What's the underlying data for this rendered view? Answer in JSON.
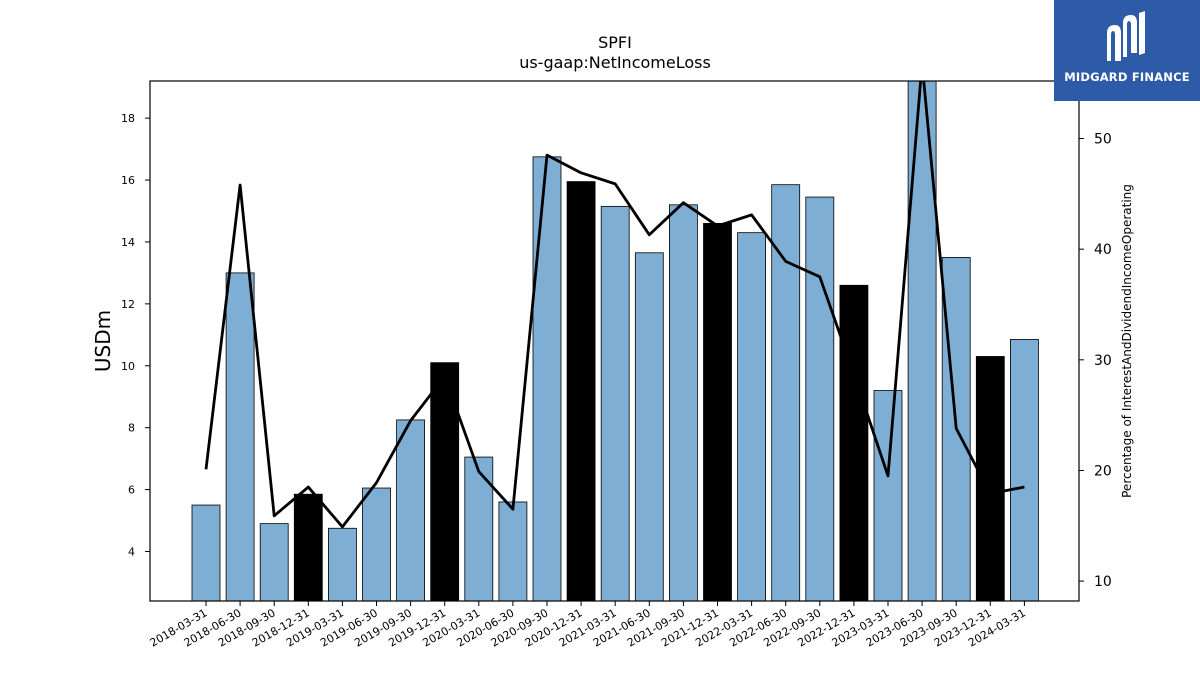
{
  "chart_data": {
    "type": "bar",
    "title": "SPFI",
    "subtitle": "us-gaap:NetIncomeLoss",
    "ylabel": "USDm",
    "y2label": "Percentage of InterestAndDividendIncomeOperating",
    "ylim": [
      2.4,
      19.2
    ],
    "y2lim": [
      8.2,
      55.2
    ],
    "yticks": [
      4,
      6,
      8,
      10,
      12,
      14,
      16,
      18
    ],
    "y2ticks": [
      10,
      20,
      30,
      40,
      50
    ],
    "categories": [
      "2018-03-31",
      "2018-06-30",
      "2018-09-30",
      "2018-12-31",
      "2019-03-31",
      "2019-06-30",
      "2019-09-30",
      "2019-12-31",
      "2020-03-31",
      "2020-06-30",
      "2020-09-30",
      "2020-12-31",
      "2021-03-31",
      "2021-06-30",
      "2021-09-30",
      "2021-12-31",
      "2022-03-31",
      "2022-06-30",
      "2022-09-30",
      "2022-12-31",
      "2023-03-31",
      "2023-06-30",
      "2023-09-30",
      "2023-12-31",
      "2024-03-31"
    ],
    "series": [
      {
        "axis": "left",
        "kind": "bar",
        "values": [
          5.5,
          13.0,
          4.9,
          5.85,
          4.75,
          6.05,
          8.25,
          10.1,
          7.05,
          5.6,
          16.75,
          15.95,
          15.15,
          13.65,
          15.2,
          14.6,
          14.3,
          15.85,
          15.45,
          12.6,
          9.2,
          19.3,
          13.5,
          10.3,
          10.85
        ],
        "colors": [
          "#7eaed3",
          "#7eaed3",
          "#7eaed3",
          "#000000",
          "#7eaed3",
          "#7eaed3",
          "#7eaed3",
          "#000000",
          "#7eaed3",
          "#7eaed3",
          "#7eaed3",
          "#000000",
          "#7eaed3",
          "#7eaed3",
          "#7eaed3",
          "#000000",
          "#7eaed3",
          "#7eaed3",
          "#7eaed3",
          "#000000",
          "#7eaed3",
          "#7eaed3",
          "#7eaed3",
          "#000000",
          "#7eaed3"
        ]
      },
      {
        "axis": "right",
        "kind": "line",
        "color": "#000000",
        "values": [
          20.1,
          45.8,
          15.9,
          18.5,
          14.9,
          18.9,
          24.5,
          28.5,
          19.9,
          16.5,
          48.5,
          46.9,
          45.9,
          41.3,
          44.2,
          42.1,
          43.1,
          38.9,
          37.5,
          28.7,
          19.5,
          56.8,
          23.8,
          17.9,
          18.5
        ]
      }
    ]
  },
  "logo": {
    "text": "MIDGARD FINANCE",
    "bg": "#2e5ba8"
  }
}
